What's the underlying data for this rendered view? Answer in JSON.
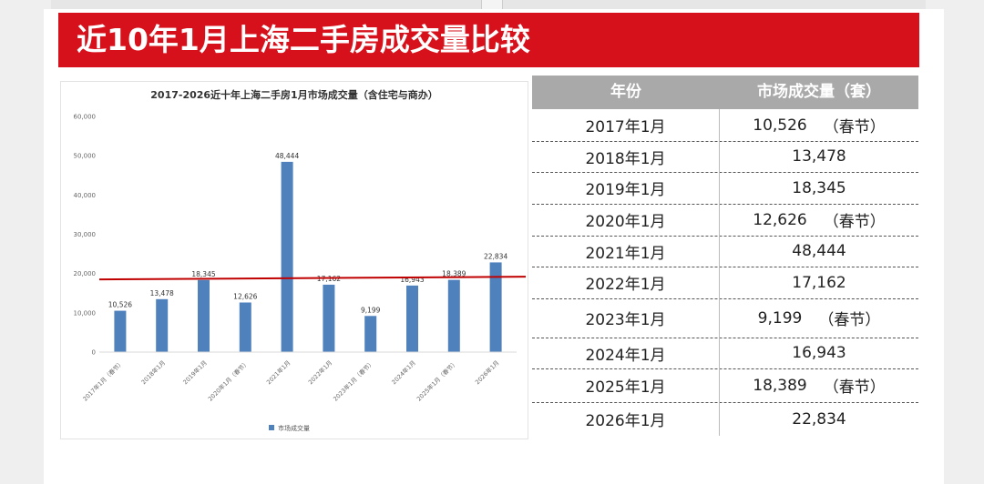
{
  "title": "近10年1月上海二手房成交量比较",
  "chart_data": {
    "type": "bar",
    "title": "2017-2026近十年上海二手房1月市场成交量（含住宅与商办）",
    "categories": [
      "2017年1月（春节）",
      "2018年1月",
      "2019年1月",
      "2020年1月（春节）",
      "2021年1月",
      "2022年1月",
      "2023年1月（春节）",
      "2024年1月",
      "2025年1月（春节）",
      "2026年1月"
    ],
    "series": [
      {
        "name": "市场成交量",
        "values": [
          10526,
          13478,
          18345,
          12626,
          48444,
          17162,
          9199,
          16943,
          18389,
          22834
        ]
      }
    ],
    "data_labels": [
      "10,526",
      "13,478",
      "18,345",
      "12,626",
      "48,444",
      "17,162",
      "9,199",
      "16,943",
      "18,389",
      "22,834"
    ],
    "yticks": [
      "0",
      "10,000",
      "20,000",
      "30,000",
      "40,000",
      "50,000",
      "60,000"
    ],
    "ylim": [
      0,
      60000
    ],
    "reference_line": 18500,
    "colors": {
      "bar": "#4f81bd",
      "reference_line": "#c00000",
      "title_bar": "#d7111c"
    },
    "legend": "bottom",
    "grid": false
  },
  "table": {
    "headers": {
      "year": "年份",
      "volume": "市场成交量（套）"
    },
    "rows": [
      {
        "year": "2017年1月",
        "volume": "10,526",
        "note": "（春节）"
      },
      {
        "year": "2018年1月",
        "volume": "13,478",
        "note": ""
      },
      {
        "year": "2019年1月",
        "volume": "18,345",
        "note": ""
      },
      {
        "year": "2020年1月",
        "volume": "12,626",
        "note": "（春节）"
      },
      {
        "year": "2021年1月",
        "volume": "48,444",
        "note": ""
      },
      {
        "year": "2022年1月",
        "volume": "17,162",
        "note": ""
      },
      {
        "year": "2023年1月",
        "volume": "9,199",
        "note": "（春节）"
      },
      {
        "year": "2024年1月",
        "volume": "16,943",
        "note": ""
      },
      {
        "year": "2025年1月",
        "volume": "18,389",
        "note": "（春节）"
      },
      {
        "year": "2026年1月",
        "volume": "22,834",
        "note": ""
      }
    ]
  }
}
